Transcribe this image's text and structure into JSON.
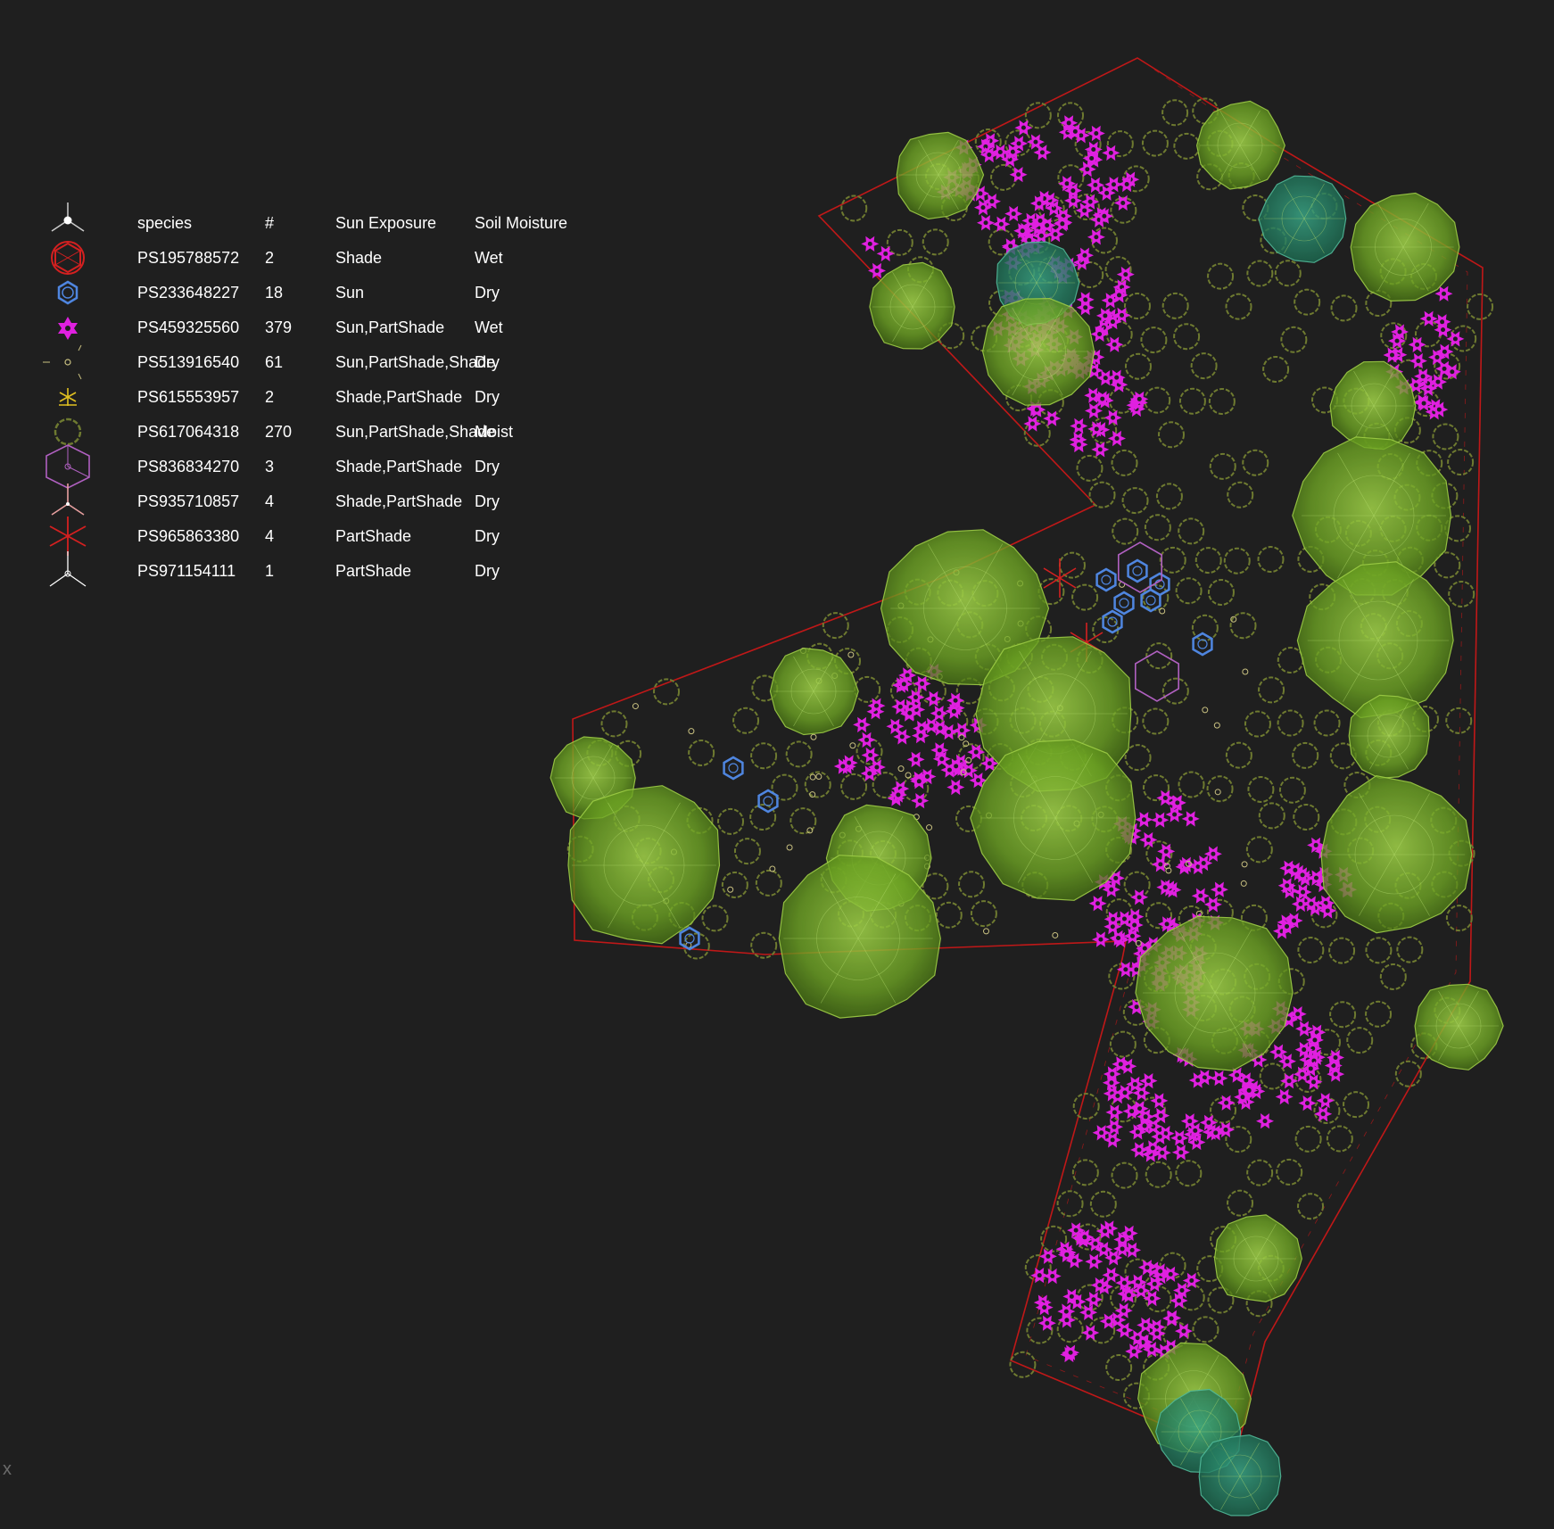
{
  "legend": {
    "headers": {
      "species": "species",
      "count": "#",
      "sun": "Sun Exposure",
      "soil": "Soil Moisture"
    },
    "rows": [
      {
        "species": "PS195788572",
        "count": "2",
        "sun": "Shade",
        "soil": "Wet",
        "icon": "red-hexagon-icon",
        "color": "#d42020"
      },
      {
        "species": "PS233648227",
        "count": "18",
        "sun": "Sun",
        "soil": "Dry",
        "icon": "blue-hexagon-icon",
        "color": "#4f86e0"
      },
      {
        "species": "PS459325560",
        "count": "379",
        "sun": "Sun,PartShade",
        "soil": "Wet",
        "icon": "magenta-flower-icon",
        "color": "#e020e0"
      },
      {
        "species": "PS513916540",
        "count": "61",
        "sun": "Sun,PartShade,Shade",
        "soil": "Dry",
        "icon": "small-circle-icon",
        "color": "#c8c080"
      },
      {
        "species": "PS615553957",
        "count": "2",
        "sun": "Shade,PartShade",
        "soil": "Dry",
        "icon": "yellow-star-icon",
        "color": "#e0c020"
      },
      {
        "species": "PS617064318",
        "count": "270",
        "sun": "Sun,PartShade,Shade",
        "soil": "Moist",
        "icon": "olive-ring-icon",
        "color": "#6e7a30"
      },
      {
        "species": "PS836834270",
        "count": "3",
        "sun": "Shade,PartShade",
        "soil": "Dry",
        "icon": "purple-hexagon-icon",
        "color": "#b060c0"
      },
      {
        "species": "PS935710857",
        "count": "4",
        "sun": "Shade,PartShade",
        "soil": "Dry",
        "icon": "pink-tripod-icon",
        "color": "#e8a0a0"
      },
      {
        "species": "PS965863380",
        "count": "4",
        "sun": "PartShade",
        "soil": "Dry",
        "icon": "red-asterisk-icon",
        "color": "#d42020"
      },
      {
        "species": "PS971154111",
        "count": "1",
        "sun": "PartShade",
        "soil": "Dry",
        "icon": "white-tripod-icon",
        "color": "#ffffff"
      }
    ]
  },
  "axis": {
    "x_label": "x"
  },
  "colors": {
    "background": "#1f1f1f",
    "boundary": "#c01818",
    "tree": "#7ab02a",
    "tree_teal": "#2a8a6a",
    "magenta": "#e020e0",
    "olive": "#6e7a30"
  }
}
